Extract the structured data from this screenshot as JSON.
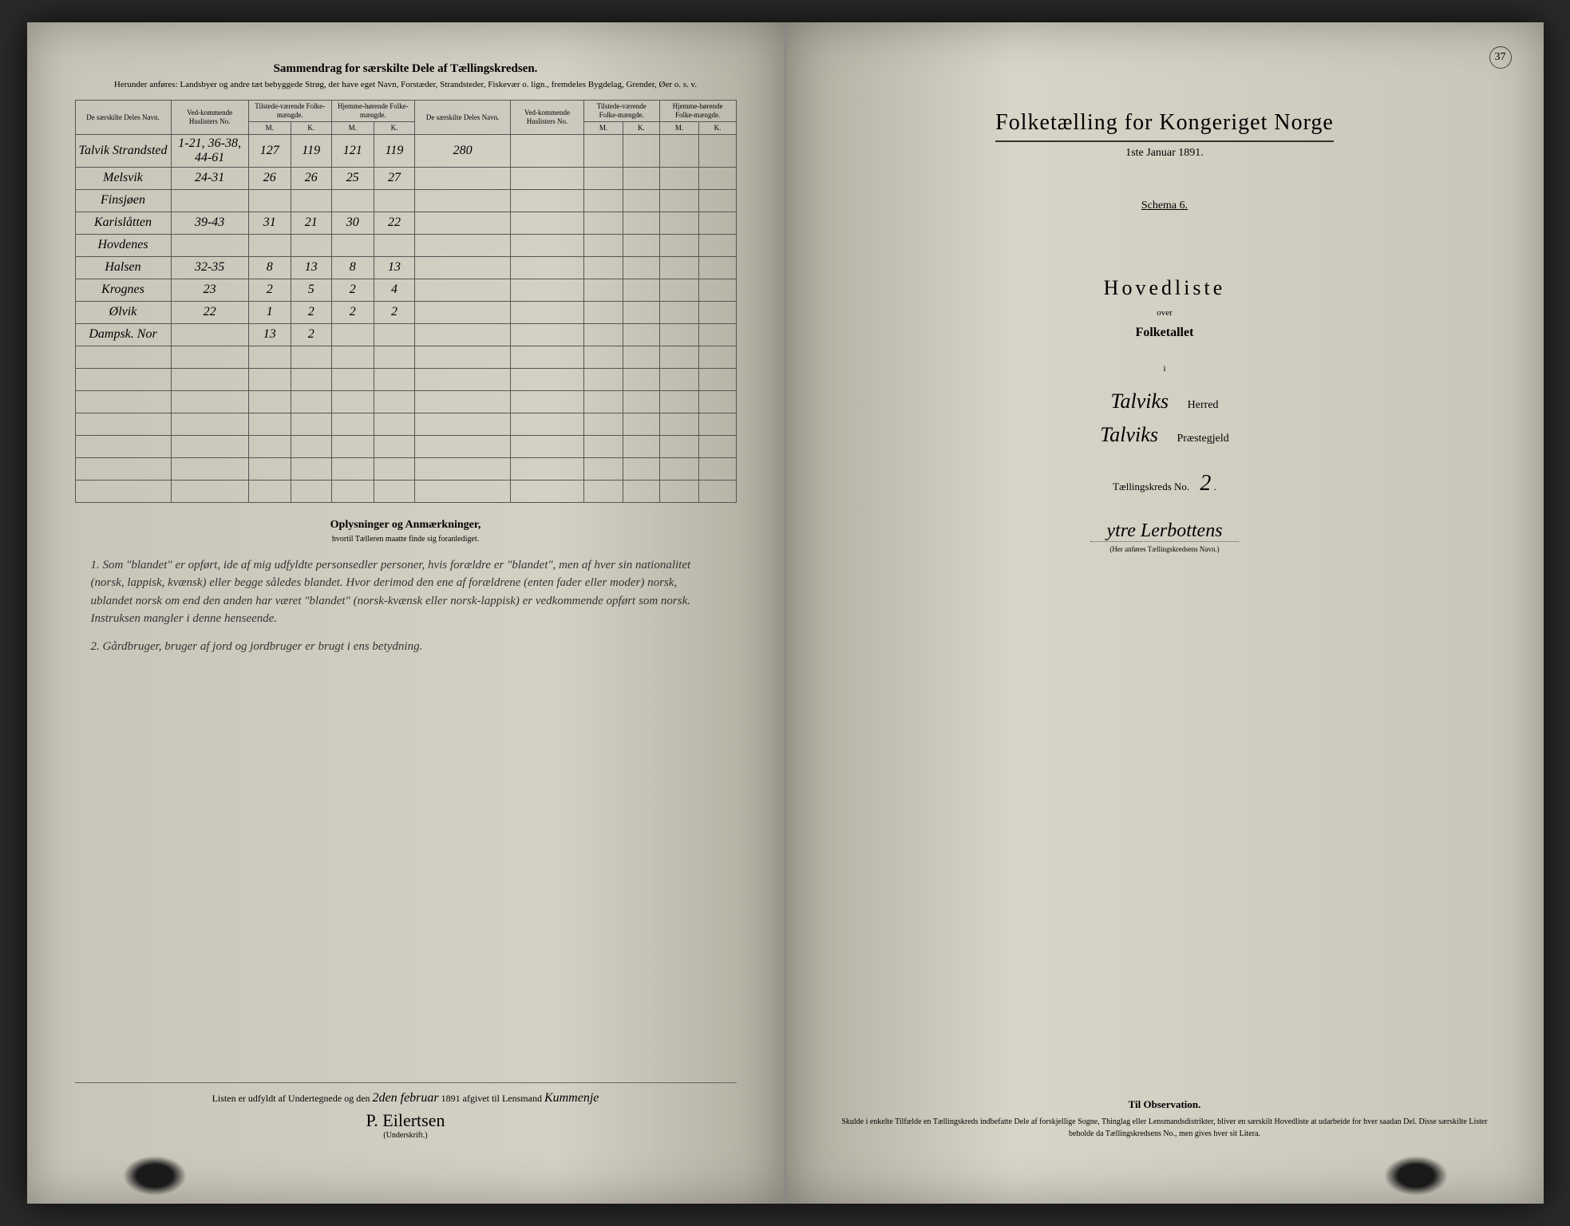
{
  "left": {
    "sectionTitle": "Sammendrag for særskilte Dele af Tællingskredsen.",
    "sectionSubtitle": "Herunder anføres: Landsbyer og andre tæt bebyggede Strøg, der have eget Navn, Forstæder, Strandsteder, Fiskevær o. lign., fremdeles Bygdelag, Grender, Øer o. s. v.",
    "headers": {
      "col1": "De særskilte Deles Navn.",
      "col2": "Ved-kommende Huslisters No.",
      "col3": "Tilstede-værende Folke-mængde.",
      "col4": "Hjemme-hørende Folke-mængde.",
      "col5": "De særskilte Deles Navn.",
      "col6": "Ved-kommende Huslisters No.",
      "col7": "Tilstede-værende Folke-mængde.",
      "col8": "Hjemme-hørende Folke-mængde.",
      "m": "M.",
      "k": "K."
    },
    "rows": [
      {
        "name": "Talvik Strandsted",
        "no": "1-21, 36-38, 44-61",
        "tm": "127",
        "tk": "119",
        "hm": "121",
        "hk": "119",
        "note": "280"
      },
      {
        "name": "Melsvik",
        "no": "24-31",
        "tm": "26",
        "tk": "26",
        "hm": "25",
        "hk": "27",
        "note": ""
      },
      {
        "name": "Finsjøen",
        "no": "",
        "tm": "",
        "tk": "",
        "hm": "",
        "hk": "",
        "note": ""
      },
      {
        "name": "Karislåtten",
        "no": "39-43",
        "tm": "31",
        "tk": "21",
        "hm": "30",
        "hk": "22",
        "note": ""
      },
      {
        "name": "Hovdenes",
        "no": "",
        "tm": "",
        "tk": "",
        "hm": "",
        "hk": "",
        "note": ""
      },
      {
        "name": "Halsen",
        "no": "32-35",
        "tm": "8",
        "tk": "13",
        "hm": "8",
        "hk": "13",
        "note": ""
      },
      {
        "name": "Krognes",
        "no": "23",
        "tm": "2",
        "tk": "5",
        "hm": "2",
        "hk": "4",
        "note": ""
      },
      {
        "name": "Ølvik",
        "no": "22",
        "tm": "1",
        "tk": "2",
        "hm": "2",
        "hk": "2",
        "note": ""
      },
      {
        "name": "Dampsk. Nor",
        "no": "",
        "tm": "13",
        "tk": "2",
        "hm": "",
        "hk": "",
        "note": ""
      }
    ],
    "notesTitle": "Oplysninger og Anmærkninger,",
    "notesSub": "hvortil Tælleren maatte finde sig foranlediget.",
    "notes": [
      "1. Som \"blandet\" er opført, ide af mig udfyldte personsedler personer, hvis forældre er \"blandet\", men af hver sin nationalitet (norsk, lappisk, kvænsk) eller begge således blandet. Hvor derimod den ene af forældrene (enten fader eller moder) norsk, ublandet norsk om end den anden har været \"blandet\" (norsk-kvænsk eller norsk-lappisk) er vedkommende opført som norsk. Instruksen mangler i denne henseende.",
      "2. Gårdbruger, bruger af jord og jordbruger er brugt i ens betydning."
    ],
    "footerText1": "Listen er udfyldt af Undertegnede og den",
    "footerDate": "2den februar",
    "footerText2": "1891 afgivet til Lensmand",
    "footerName": "Kummenje",
    "signature": "P. Eilertsen",
    "sigLabel": "(Underskrift.)"
  },
  "right": {
    "pageNumber": "37",
    "mainTitle": "Folketælling for Kongeriget Norge",
    "dateLine": "1ste Januar 1891.",
    "schema": "Schema 6.",
    "hovedliste": "Hovedliste",
    "over": "over",
    "folketallet": "Folketallet",
    "i": "i",
    "herred": "Talviks",
    "herredLabel": "Herred",
    "praestegjeld": "Talviks",
    "praestegjeldLabel": "Præstegjeld",
    "kredsLabel": "Tællingskreds No.",
    "kredsNo": "2",
    "kredsName": "ytre Lerbottens",
    "kredsNameLabel": "(Her anføres Tællingskredsens Navn.)",
    "obsTitle": "Til Observation.",
    "obsText": "Skulde i enkelte Tilfælde en Tællingskreds indbefatte Dele af forskjellige Sogne, Thinglag eller Lensmandsdistrikter, bliver en særskilt Hovedliste at udarbeide for hver saadan Del. Disse særskilte Lister beholde da Tællingskredsens No., men gives hver sit Litera."
  }
}
